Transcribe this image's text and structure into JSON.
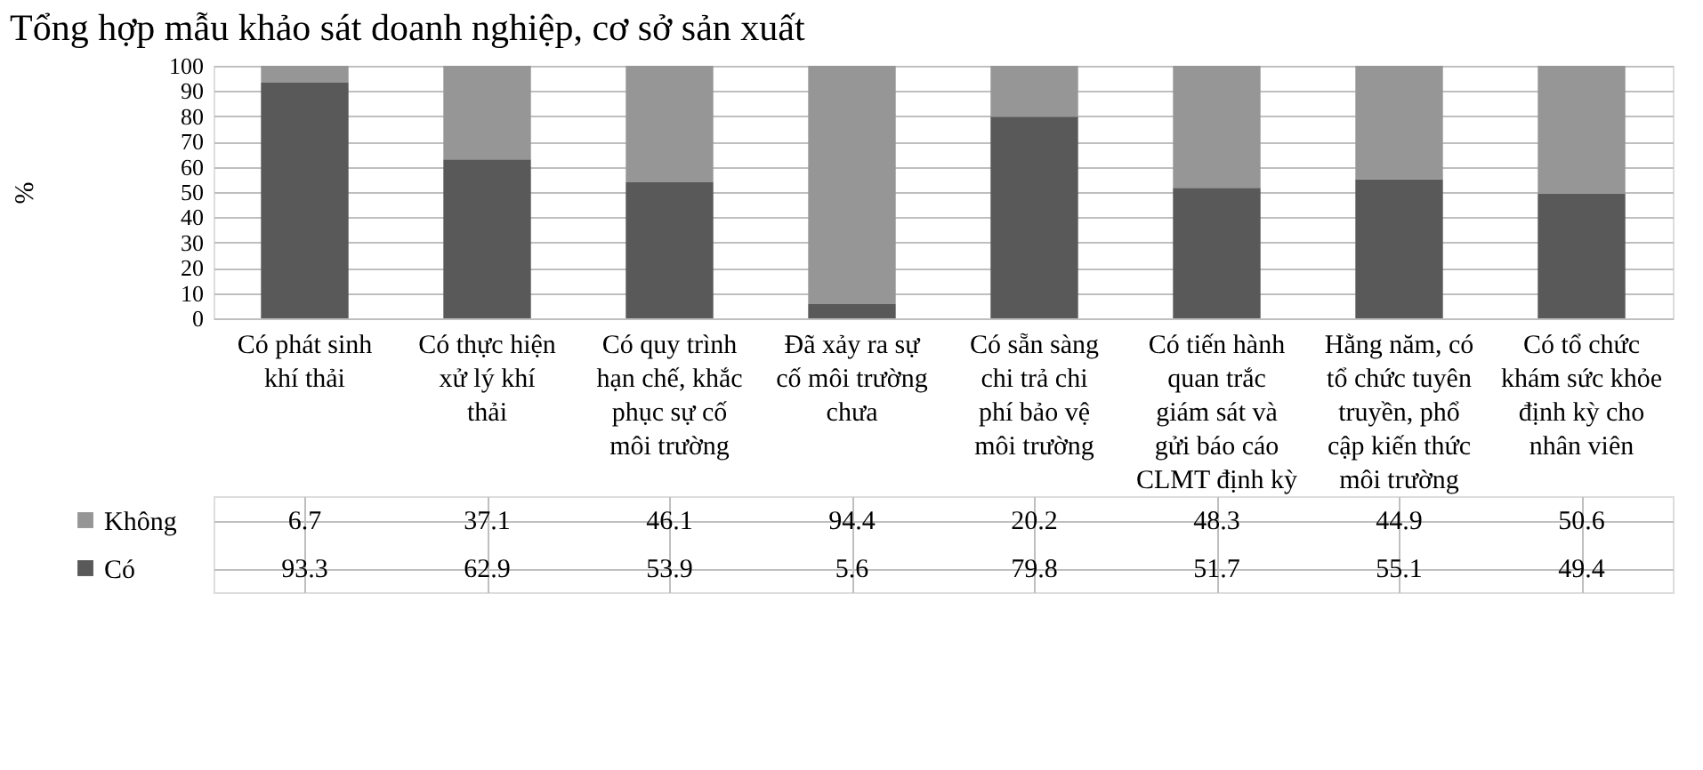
{
  "chart_data": {
    "type": "bar",
    "title": "Tổng hợp mẫu khảo sát doanh nghiệp, cơ sở sản xuất",
    "ylabel": "%",
    "categories": [
      "Có phát sinh khí thải",
      "Có thực hiện xử lý khí thải",
      "Có quy trình hạn chế, khắc phục sự cố môi trường",
      "Đã xảy ra sự cố môi trường chưa",
      "Có sẵn sàng chi trả chi phí bảo vệ môi trường",
      "Có tiến hành quan trắc giám sát và gửi báo cáo CLMT định kỳ",
      "Hằng năm, có tổ chức tuyên truyền, phổ cập kiến thức môi trường",
      "Có tổ chức khám sức khỏe định kỳ cho nhân viên"
    ],
    "series": [
      {
        "name": "Có",
        "color": "#595959",
        "values": [
          93.3,
          62.9,
          53.9,
          5.6,
          79.8,
          51.7,
          55.1,
          49.4
        ]
      },
      {
        "name": "Không",
        "color": "#969696",
        "values": [
          6.7,
          37.1,
          46.1,
          94.4,
          20.2,
          48.3,
          44.9,
          50.6
        ]
      }
    ],
    "stacked": true,
    "ylim": [
      0,
      100
    ],
    "yticks": [
      0,
      10,
      20,
      30,
      40,
      50,
      60,
      70,
      80,
      90,
      100
    ],
    "grid": "y",
    "data_labels": true,
    "legend": "bottom left"
  }
}
